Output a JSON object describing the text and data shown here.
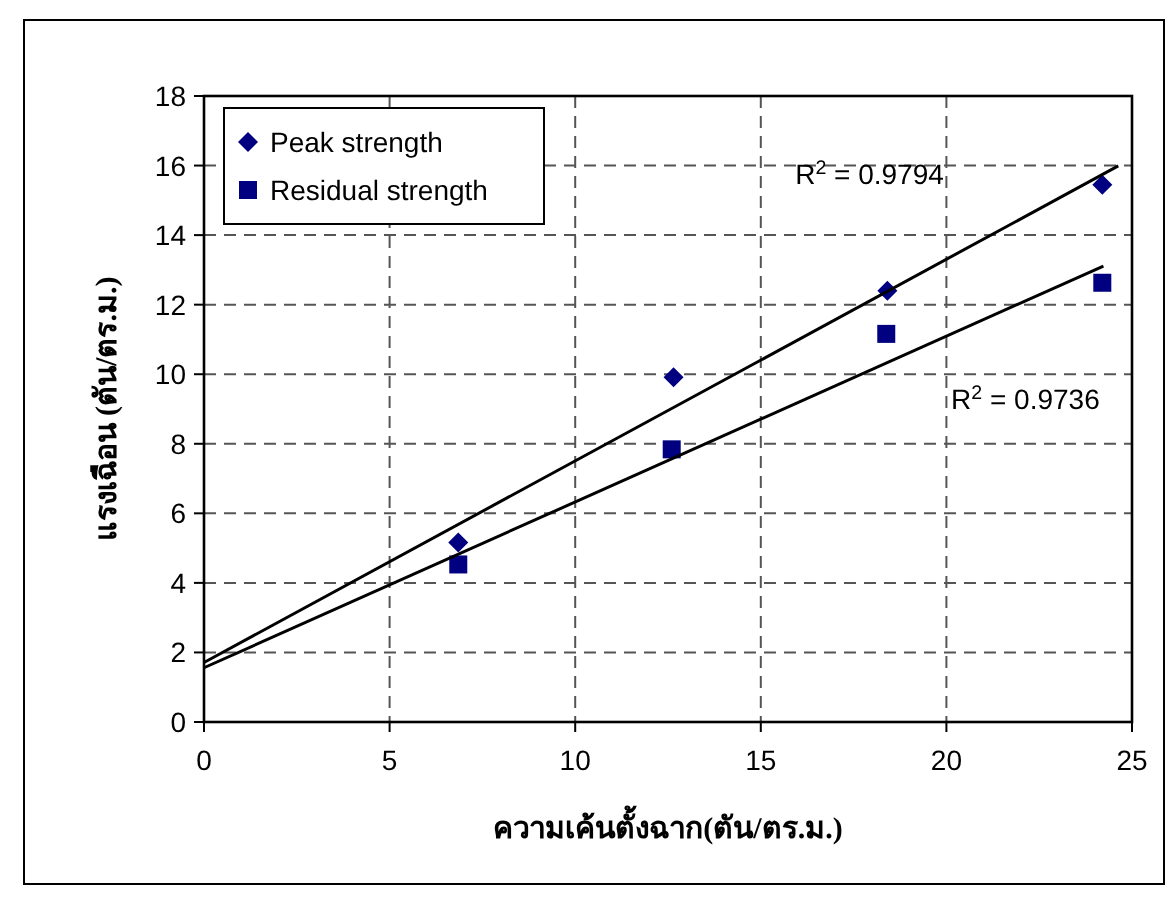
{
  "chart_data": {
    "type": "scatter",
    "xlabel": "ความเค้นตั้งฉาก(ตัน/ตร.ม.)",
    "ylabel": "แรงเฉือน (ตัน/ตร.ม.)",
    "xlim": [
      0,
      25
    ],
    "ylim": [
      0,
      18
    ],
    "xticks": [
      0,
      5,
      10,
      15,
      20,
      25
    ],
    "yticks": [
      0,
      2,
      4,
      6,
      8,
      10,
      12,
      14,
      16,
      18
    ],
    "grid": true,
    "legend": "top left",
    "series": [
      {
        "name": "Peak strength",
        "color": "#000080",
        "marker": "diamond",
        "x": [
          6.85,
          12.65,
          18.41,
          24.2
        ],
        "values": [
          5.16,
          9.91,
          12.4,
          15.45
        ]
      },
      {
        "name": "Residual strength",
        "color": "#000080",
        "marker": "square",
        "x": [
          6.85,
          12.6,
          18.38,
          24.2
        ],
        "values": [
          4.53,
          7.84,
          11.16,
          12.63
        ]
      },
      {
        "type": "line",
        "color": "#000000",
        "line_style": "solid",
        "x": [
          0,
          24.63
        ],
        "values": [
          1.71,
          15.99
        ]
      },
      {
        "type": "line",
        "color": "#000000",
        "line_style": "solid",
        "x": [
          0,
          24.23
        ],
        "values": [
          1.56,
          13.11
        ]
      }
    ],
    "annotations": [
      "R$^{2}$ = 0.9794",
      "R$^{2}$ = 0.9736"
    ]
  }
}
